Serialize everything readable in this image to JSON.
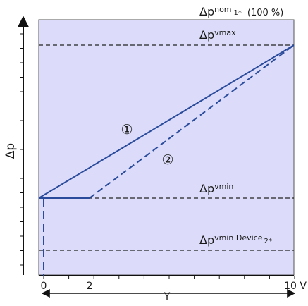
{
  "colors": {
    "plot_background": "#dcdcfa",
    "plot_border": "#555555",
    "curve": "#2a4b9b",
    "reference_line": "#222222",
    "axis": "#111111"
  },
  "axes": {
    "y_label": "Δp",
    "x_label": "Y",
    "x_tick_labels": [
      {
        "value": 0,
        "text": "0"
      },
      {
        "value": 2,
        "text": "2"
      },
      {
        "value": 10,
        "text": "10 V"
      }
    ],
    "x_range": [
      0,
      10
    ]
  },
  "levels": {
    "nom": {
      "main": "Δp",
      "sup": "nom",
      "sub": "1*",
      "suffix": "(100 %)"
    },
    "vmax": {
      "main": "Δp",
      "sup": "vmax"
    },
    "vmin": {
      "main": "Δp",
      "sup": "vmin"
    },
    "vmin_device": {
      "main": "Δp",
      "sup": "vmin Device",
      "sub": "2*"
    }
  },
  "curves": [
    {
      "marker": "①",
      "style": "solid",
      "points": [
        [
          0,
          "vmin"
        ],
        [
          10,
          "vmax"
        ]
      ]
    },
    {
      "marker": "②",
      "style": "dashed",
      "points": [
        [
          0,
          "vmin"
        ],
        [
          2,
          "vmin"
        ],
        [
          10,
          "vmax"
        ]
      ]
    }
  ]
}
